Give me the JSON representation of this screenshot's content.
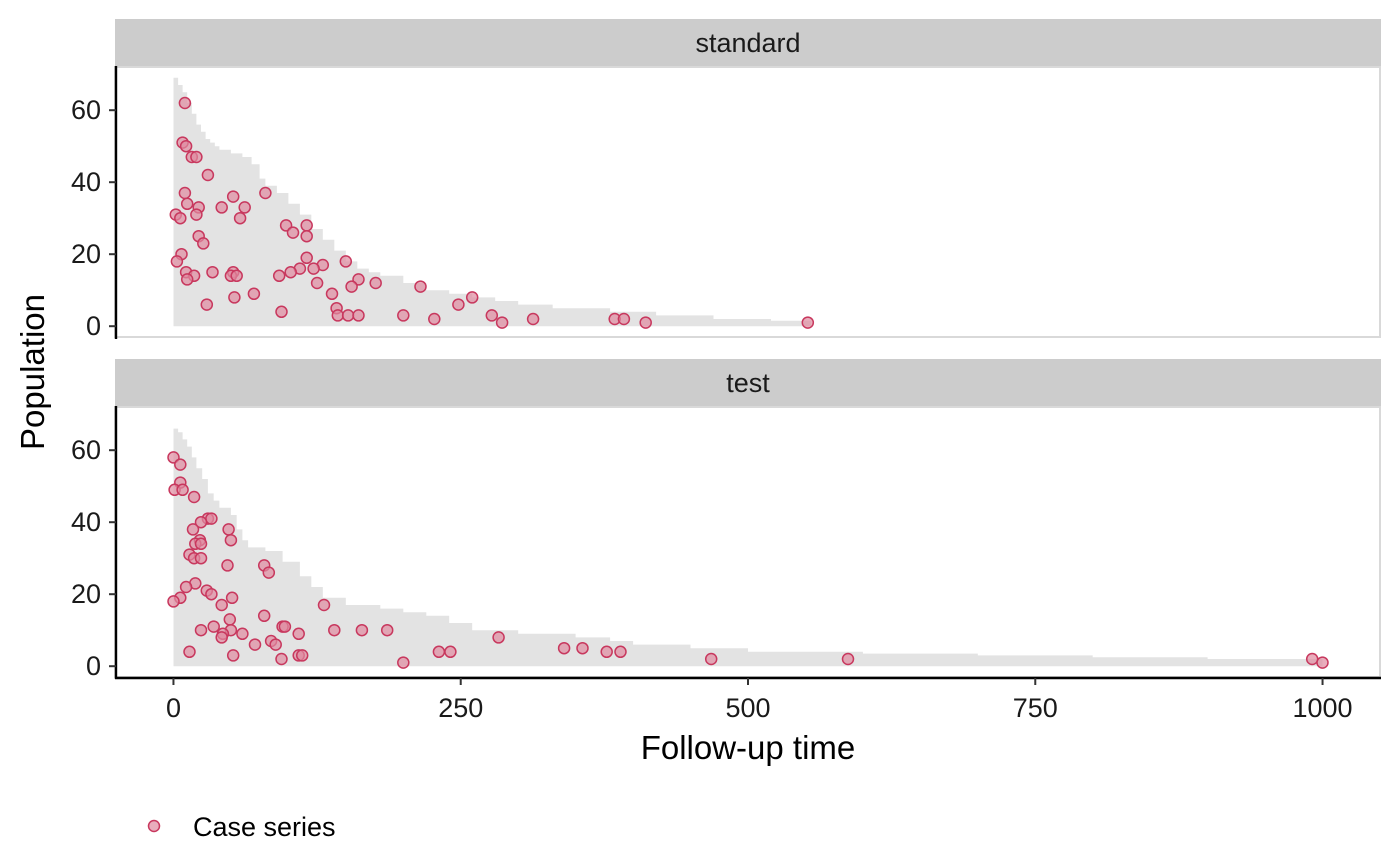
{
  "chart_data": {
    "type": "scatter",
    "xlabel": "Follow-up time",
    "ylabel": "Population",
    "xlim": [
      -50,
      1050
    ],
    "ylim": [
      -3,
      72
    ],
    "x_ticks": [
      0,
      250,
      500,
      750,
      1000
    ],
    "y_ticks": [
      0,
      20,
      40,
      60
    ],
    "grid": false,
    "legend": {
      "position": "bottom-left",
      "entries": [
        {
          "label": "Case series",
          "color": "#c8385e",
          "marker": "circle"
        }
      ]
    },
    "colors": {
      "point_fill": "#e08aa0",
      "point_stroke": "#c8385e",
      "area_fill": "#e3e3e3",
      "strip_fill": "#cccccc",
      "panel_border": "#d9d9d9"
    },
    "panels": [
      {
        "strip_label": "standard",
        "population_area": [
          [
            0,
            69
          ],
          [
            4,
            67
          ],
          [
            8,
            65
          ],
          [
            12,
            62
          ],
          [
            16,
            59
          ],
          [
            20,
            56
          ],
          [
            24,
            54
          ],
          [
            28,
            52
          ],
          [
            32,
            51
          ],
          [
            36,
            50
          ],
          [
            40,
            49
          ],
          [
            50,
            48
          ],
          [
            60,
            47
          ],
          [
            68,
            45
          ],
          [
            75,
            41
          ],
          [
            80,
            39
          ],
          [
            90,
            37
          ],
          [
            100,
            34
          ],
          [
            110,
            31
          ],
          [
            120,
            27
          ],
          [
            130,
            24
          ],
          [
            140,
            21
          ],
          [
            150,
            18
          ],
          [
            160,
            16
          ],
          [
            170,
            15
          ],
          [
            180,
            14
          ],
          [
            200,
            12
          ],
          [
            220,
            10
          ],
          [
            240,
            9
          ],
          [
            260,
            8
          ],
          [
            280,
            7
          ],
          [
            300,
            6
          ],
          [
            330,
            5
          ],
          [
            380,
            4
          ],
          [
            420,
            3
          ],
          [
            470,
            2
          ],
          [
            520,
            1.5
          ],
          [
            555,
            1
          ]
        ],
        "points": [
          {
            "x": 10,
            "y": 62
          },
          {
            "x": 8,
            "y": 51
          },
          {
            "x": 11,
            "y": 50
          },
          {
            "x": 16,
            "y": 47
          },
          {
            "x": 20,
            "y": 47
          },
          {
            "x": 30,
            "y": 42
          },
          {
            "x": 10,
            "y": 37
          },
          {
            "x": 80,
            "y": 37
          },
          {
            "x": 52,
            "y": 36
          },
          {
            "x": 12,
            "y": 34
          },
          {
            "x": 22,
            "y": 33
          },
          {
            "x": 42,
            "y": 33
          },
          {
            "x": 62,
            "y": 33
          },
          {
            "x": 2,
            "y": 31
          },
          {
            "x": 20,
            "y": 31
          },
          {
            "x": 6,
            "y": 30
          },
          {
            "x": 58,
            "y": 30
          },
          {
            "x": 98,
            "y": 28
          },
          {
            "x": 116,
            "y": 28
          },
          {
            "x": 104,
            "y": 26
          },
          {
            "x": 22,
            "y": 25
          },
          {
            "x": 116,
            "y": 25
          },
          {
            "x": 26,
            "y": 23
          },
          {
            "x": 7,
            "y": 20
          },
          {
            "x": 116,
            "y": 19
          },
          {
            "x": 3,
            "y": 18
          },
          {
            "x": 150,
            "y": 18
          },
          {
            "x": 130,
            "y": 17
          },
          {
            "x": 110,
            "y": 16
          },
          {
            "x": 122,
            "y": 16
          },
          {
            "x": 11,
            "y": 15
          },
          {
            "x": 34,
            "y": 15
          },
          {
            "x": 52,
            "y": 15
          },
          {
            "x": 102,
            "y": 15
          },
          {
            "x": 18,
            "y": 14
          },
          {
            "x": 50,
            "y": 14
          },
          {
            "x": 55,
            "y": 14
          },
          {
            "x": 92,
            "y": 14
          },
          {
            "x": 12,
            "y": 13
          },
          {
            "x": 161,
            "y": 13
          },
          {
            "x": 125,
            "y": 12
          },
          {
            "x": 176,
            "y": 12
          },
          {
            "x": 155,
            "y": 11
          },
          {
            "x": 215,
            "y": 11
          },
          {
            "x": 70,
            "y": 9
          },
          {
            "x": 138,
            "y": 9
          },
          {
            "x": 53,
            "y": 8
          },
          {
            "x": 260,
            "y": 8
          },
          {
            "x": 29,
            "y": 6
          },
          {
            "x": 248,
            "y": 6
          },
          {
            "x": 142,
            "y": 5
          },
          {
            "x": 94,
            "y": 4
          },
          {
            "x": 143,
            "y": 3
          },
          {
            "x": 152,
            "y": 3
          },
          {
            "x": 161,
            "y": 3
          },
          {
            "x": 200,
            "y": 3
          },
          {
            "x": 277,
            "y": 3
          },
          {
            "x": 227,
            "y": 2
          },
          {
            "x": 313,
            "y": 2
          },
          {
            "x": 384,
            "y": 2
          },
          {
            "x": 392,
            "y": 2
          },
          {
            "x": 286,
            "y": 1
          },
          {
            "x": 411,
            "y": 1
          },
          {
            "x": 552,
            "y": 1
          }
        ]
      },
      {
        "strip_label": "test",
        "population_area": [
          [
            0,
            66
          ],
          [
            4,
            65
          ],
          [
            8,
            63
          ],
          [
            12,
            61
          ],
          [
            16,
            58
          ],
          [
            20,
            55
          ],
          [
            25,
            52
          ],
          [
            30,
            48
          ],
          [
            35,
            46
          ],
          [
            40,
            44
          ],
          [
            50,
            42
          ],
          [
            55,
            38
          ],
          [
            60,
            35
          ],
          [
            65,
            33
          ],
          [
            80,
            32
          ],
          [
            95,
            29
          ],
          [
            110,
            25
          ],
          [
            120,
            22
          ],
          [
            130,
            19
          ],
          [
            150,
            17
          ],
          [
            180,
            16
          ],
          [
            200,
            15
          ],
          [
            220,
            14
          ],
          [
            240,
            12
          ],
          [
            260,
            10
          ],
          [
            300,
            9
          ],
          [
            350,
            8
          ],
          [
            380,
            7
          ],
          [
            400,
            6
          ],
          [
            450,
            5
          ],
          [
            500,
            4
          ],
          [
            600,
            3.5
          ],
          [
            700,
            3
          ],
          [
            800,
            2.5
          ],
          [
            900,
            2
          ],
          [
            1000,
            1.5
          ]
        ],
        "points": [
          {
            "x": 0,
            "y": 58
          },
          {
            "x": 6,
            "y": 56
          },
          {
            "x": 6,
            "y": 51
          },
          {
            "x": 1,
            "y": 49
          },
          {
            "x": 8,
            "y": 49
          },
          {
            "x": 18,
            "y": 47
          },
          {
            "x": 30,
            "y": 41
          },
          {
            "x": 33,
            "y": 41
          },
          {
            "x": 24,
            "y": 40
          },
          {
            "x": 17,
            "y": 38
          },
          {
            "x": 48,
            "y": 38
          },
          {
            "x": 50,
            "y": 35
          },
          {
            "x": 23,
            "y": 35
          },
          {
            "x": 19,
            "y": 34
          },
          {
            "x": 24,
            "y": 34
          },
          {
            "x": 14,
            "y": 31
          },
          {
            "x": 18,
            "y": 30
          },
          {
            "x": 24,
            "y": 30
          },
          {
            "x": 47,
            "y": 28
          },
          {
            "x": 79,
            "y": 28
          },
          {
            "x": 83,
            "y": 26
          },
          {
            "x": 19,
            "y": 23
          },
          {
            "x": 11,
            "y": 22
          },
          {
            "x": 29,
            "y": 21
          },
          {
            "x": 33,
            "y": 20
          },
          {
            "x": 6,
            "y": 19
          },
          {
            "x": 51,
            "y": 19
          },
          {
            "x": 0,
            "y": 18
          },
          {
            "x": 42,
            "y": 17
          },
          {
            "x": 131,
            "y": 17
          },
          {
            "x": 79,
            "y": 14
          },
          {
            "x": 49,
            "y": 13
          },
          {
            "x": 35,
            "y": 11
          },
          {
            "x": 95,
            "y": 11
          },
          {
            "x": 97,
            "y": 11
          },
          {
            "x": 24,
            "y": 10
          },
          {
            "x": 50,
            "y": 10
          },
          {
            "x": 140,
            "y": 10
          },
          {
            "x": 164,
            "y": 10
          },
          {
            "x": 186,
            "y": 10
          },
          {
            "x": 43,
            "y": 9
          },
          {
            "x": 60,
            "y": 9
          },
          {
            "x": 109,
            "y": 9
          },
          {
            "x": 42,
            "y": 8
          },
          {
            "x": 283,
            "y": 8
          },
          {
            "x": 85,
            "y": 7
          },
          {
            "x": 71,
            "y": 6
          },
          {
            "x": 89,
            "y": 6
          },
          {
            "x": 340,
            "y": 5
          },
          {
            "x": 356,
            "y": 5
          },
          {
            "x": 14,
            "y": 4
          },
          {
            "x": 231,
            "y": 4
          },
          {
            "x": 241,
            "y": 4
          },
          {
            "x": 377,
            "y": 4
          },
          {
            "x": 389,
            "y": 4
          },
          {
            "x": 52,
            "y": 3
          },
          {
            "x": 109,
            "y": 3
          },
          {
            "x": 112,
            "y": 3
          },
          {
            "x": 94,
            "y": 2
          },
          {
            "x": 468,
            "y": 2
          },
          {
            "x": 587,
            "y": 2
          },
          {
            "x": 991,
            "y": 2
          },
          {
            "x": 200,
            "y": 1
          },
          {
            "x": 1000,
            "y": 1
          }
        ]
      }
    ]
  }
}
